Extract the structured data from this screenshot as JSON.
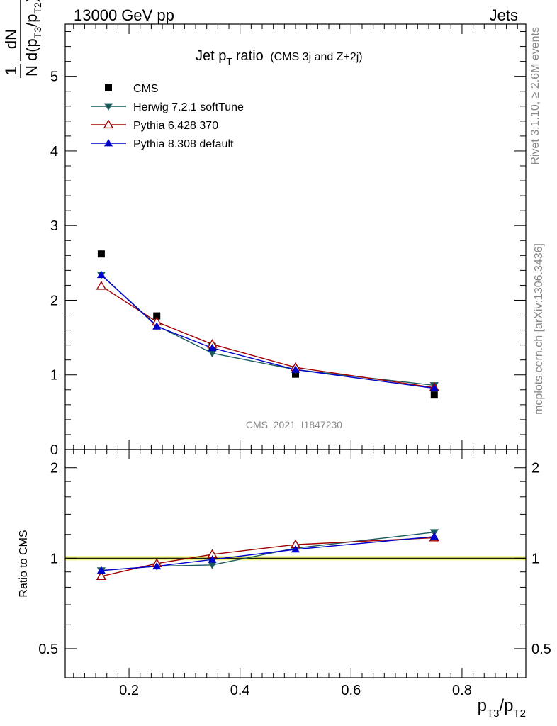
{
  "header": {
    "left": "13000 GeV pp",
    "right": "Jets"
  },
  "side": {
    "rivet": "Rivet 3.1.10, ≥ 2.6M events",
    "mcplots": "mcplots.cern.ch [arXiv:1306.3436]"
  },
  "chart_data": [
    {
      "type": "scatter",
      "title_main": "Jet p",
      "title_sub": "T",
      "title_word": " ratio",
      "title_extra": "(CMS 3j and Z+2j)",
      "watermark": "CMS_2021_I1847230",
      "ylabel": {
        "one": "1",
        "N": "N",
        "dN": "dN",
        "d": "d(p",
        "sub1": "T3",
        "slash": "/p",
        "sub2": "T2",
        "close": ")"
      },
      "xlim": [
        0.085,
        0.915
      ],
      "ylim": [
        0,
        5.7
      ],
      "yticks": [
        {
          "v": 0,
          "label": "0"
        },
        {
          "v": 1,
          "label": "1"
        },
        {
          "v": 2,
          "label": "2"
        },
        {
          "v": 3,
          "label": "3"
        },
        {
          "v": 4,
          "label": "4"
        },
        {
          "v": 5,
          "label": "5"
        }
      ],
      "x": [
        0.15,
        0.25,
        0.35,
        0.5,
        0.75
      ],
      "series": [
        {
          "name": "CMS",
          "marker": "square",
          "color": "#000000",
          "line": false,
          "values": [
            2.62,
            1.79,
            1.38,
            1.01,
            0.73
          ]
        },
        {
          "name": "Herwig 7.2.1 softTune",
          "marker": "tri-down",
          "color": "#1a5c5c",
          "line": true,
          "values": [
            2.34,
            1.66,
            1.29,
            1.07,
            0.86
          ]
        },
        {
          "name": "Pythia 6.428 370",
          "marker": "tri-up-open",
          "color": "#a00000",
          "line": true,
          "values": [
            2.19,
            1.71,
            1.41,
            1.1,
            0.83
          ]
        },
        {
          "name": "Pythia 8.308 default",
          "marker": "tri-up",
          "color": "#0000cc",
          "line": true,
          "values": [
            2.34,
            1.65,
            1.36,
            1.07,
            0.82
          ]
        }
      ]
    },
    {
      "type": "line",
      "ylabel": "Ratio to CMS",
      "ylim": [
        0.4,
        2.3
      ],
      "log_y": true,
      "xlim": [
        0.085,
        0.915
      ],
      "xlabel": {
        "p": "p",
        "sub1": "T3",
        "slash": "/p",
        "sub2": "T2"
      },
      "xticks": [
        {
          "v": 0.2,
          "label": "0.2"
        },
        {
          "v": 0.4,
          "label": "0.4"
        },
        {
          "v": 0.6,
          "label": "0.6"
        },
        {
          "v": 0.8,
          "label": "0.8"
        }
      ],
      "yticks": [
        {
          "v": 0.5,
          "label": "0.5"
        },
        {
          "v": 1,
          "label": "1"
        },
        {
          "v": 2,
          "label": "2"
        }
      ],
      "band_color": "#eef77a",
      "x": [
        0.15,
        0.25,
        0.35,
        0.5,
        0.75
      ],
      "series": [
        {
          "name": "Herwig 7.2.1 softTune",
          "marker": "tri-down",
          "color": "#1a5c5c",
          "values": [
            0.91,
            0.94,
            0.95,
            1.08,
            1.22
          ]
        },
        {
          "name": "Pythia 6.428 370",
          "marker": "tri-up-open",
          "color": "#a00000",
          "values": [
            0.87,
            0.96,
            1.03,
            1.11,
            1.17
          ]
        },
        {
          "name": "Pythia 8.308 default",
          "marker": "tri-up",
          "color": "#0000cc",
          "values": [
            0.91,
            0.94,
            0.99,
            1.07,
            1.18
          ]
        }
      ]
    }
  ]
}
